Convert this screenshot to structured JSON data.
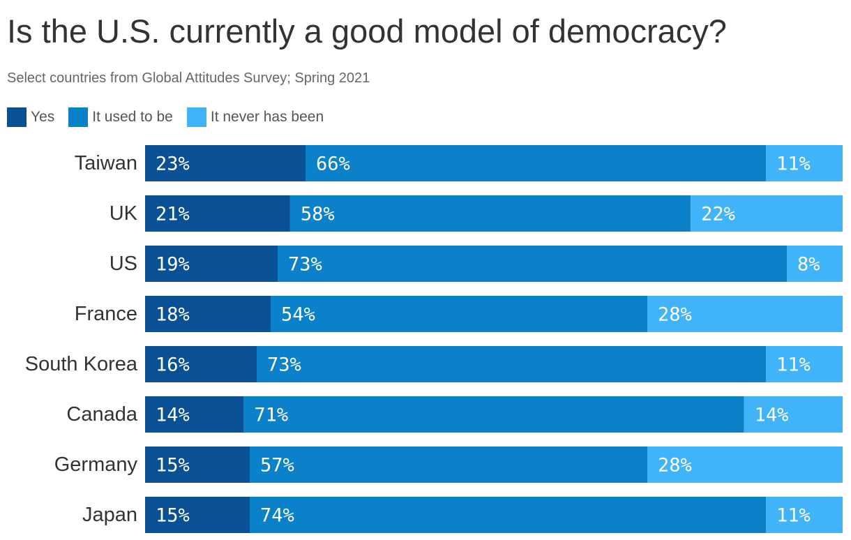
{
  "header": {
    "title": "Is the U.S. currently a good model of democracy?",
    "subtitle": "Select countries from Global Attitudes Survey; Spring 2021"
  },
  "legend": [
    {
      "label": "Yes",
      "color": "#0a5094"
    },
    {
      "label": "It used to be",
      "color": "#0a81c9"
    },
    {
      "label": "It never has been",
      "color": "#41b3f8"
    }
  ],
  "chart_data": {
    "type": "bar",
    "orientation": "horizontal",
    "stacked": true,
    "title": "Is the U.S. currently a good model of democracy?",
    "subtitle": "Select countries from Global Attitudes Survey; Spring 2021",
    "categories": [
      "Taiwan",
      "UK",
      "US",
      "France",
      "South Korea",
      "Canada",
      "Germany",
      "Japan"
    ],
    "series": [
      {
        "name": "Yes",
        "color": "#0a5094",
        "values": [
          23,
          21,
          19,
          18,
          16,
          14,
          15,
          15
        ]
      },
      {
        "name": "It used to be",
        "color": "#0a81c9",
        "values": [
          66,
          58,
          73,
          54,
          73,
          71,
          57,
          74
        ]
      },
      {
        "name": "It never has been",
        "color": "#41b3f8",
        "values": [
          11,
          22,
          8,
          28,
          11,
          14,
          28,
          11
        ]
      }
    ],
    "value_suffix": "%",
    "legend_position": "top-left",
    "grid": false
  }
}
